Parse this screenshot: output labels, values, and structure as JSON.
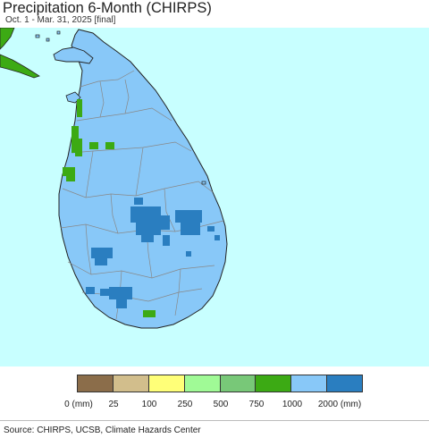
{
  "header": {
    "title": "Precipitation 6-Month (CHIRPS)",
    "subtitle": "Oct. 1 - Mar. 31, 2025 [final]"
  },
  "map": {
    "region": "Sri Lanka",
    "colors": {
      "ocean": "#c8ffff",
      "land": "#88c8f8",
      "wet_pockets": "#2a7ec0",
      "dry_pockets": "#3caa14",
      "neighbor_land": "#3caa14",
      "boundaries": "#888888",
      "coastline": "#222222"
    }
  },
  "legend": {
    "colors": [
      "#8b6d4a",
      "#d2be8c",
      "#ffff78",
      "#a0fa96",
      "#78c878",
      "#3caa14",
      "#88c8f8",
      "#2a7ec0"
    ],
    "labels": [
      "0 (mm)",
      "25",
      "100",
      "250",
      "500",
      "750",
      "1000",
      "2000 (mm)"
    ]
  },
  "footer": {
    "source": "Source: CHIRPS, UCSB, Climate Hazards Center"
  }
}
